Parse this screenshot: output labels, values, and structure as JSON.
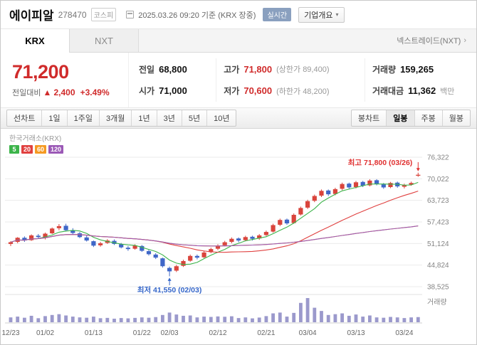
{
  "header": {
    "title": "에이피알",
    "code": "278470",
    "market_badge": "코스피",
    "datetime": "2025.03.26 09:20 기준 (KRX 장중)",
    "realtime_label": "실시간",
    "overview_label": "기업개요"
  },
  "icons": {
    "chevron_down": "▾",
    "chevron_right": "›"
  },
  "tabs": {
    "krx": "KRX",
    "nxt": "NXT",
    "link_label": "넥스트레이드(NXT)"
  },
  "price": {
    "current": "71,200",
    "change_label": "전일대비",
    "change_arrow": "▲",
    "change_value": "2,400",
    "change_percent": "+3.49%",
    "prev_label": "전일",
    "prev_value": "68,800",
    "open_label": "시가",
    "open_value": "71,000",
    "high_label": "고가",
    "high_value": "71,800",
    "upper_limit": "(상한가 89,400)",
    "low_label": "저가",
    "low_value": "70,600",
    "lower_limit": "(하한가 48,200)",
    "volume_label": "거래량",
    "volume_value": "159,265",
    "amount_label": "거래대금",
    "amount_value": "11,362",
    "amount_unit": "백만"
  },
  "toolbar": {
    "left": [
      "선차트",
      "1일",
      "1주일",
      "3개월",
      "1년",
      "3년",
      "5년",
      "10년"
    ],
    "right": [
      "봉차트",
      "일봉",
      "주봉",
      "월봉"
    ],
    "active": "일봉"
  },
  "colors": {
    "up": "#d9443c",
    "down": "#3f67c8",
    "price_up": "#d02b2b",
    "volume": "#9b99cc",
    "annotation_high": "#e03131",
    "annotation_low": "#3566c9"
  },
  "chart_data": {
    "type": "candlestick",
    "source_label": "한국거래소(KRX)",
    "ma_legend": [
      {
        "label": "5",
        "color": "#3cb44a"
      },
      {
        "label": "20",
        "color": "#e0403f"
      },
      {
        "label": "60",
        "color": "#f59a23"
      },
      {
        "label": "120",
        "color": "#9b59b6"
      }
    ],
    "y_ticks": [
      76322,
      70022,
      63723,
      57423,
      51124,
      44824,
      38525
    ],
    "y_min": 38525,
    "y_max": 76322,
    "x_labels": [
      {
        "idx": 0,
        "label": "12/23"
      },
      {
        "idx": 5,
        "label": "01/02"
      },
      {
        "idx": 12,
        "label": "01/13"
      },
      {
        "idx": 19,
        "label": "01/22"
      },
      {
        "idx": 23,
        "label": "02/03"
      },
      {
        "idx": 30,
        "label": "02/12"
      },
      {
        "idx": 37,
        "label": "02/21"
      },
      {
        "idx": 43,
        "label": "03/04"
      },
      {
        "idx": 50,
        "label": "03/13"
      },
      {
        "idx": 57,
        "label": "03/24"
      }
    ],
    "annotations": {
      "high": {
        "text": "최고 71,800 (03/26)",
        "idx": 59,
        "value": 71800
      },
      "low": {
        "text": "최저 41,550 (02/03)",
        "idx": 23,
        "value": 41550
      }
    },
    "volume_pane_label": "거래량",
    "candles": [
      [
        "12/23",
        51000,
        51800,
        50400,
        51500,
        30
      ],
      [
        "12/24",
        51600,
        53000,
        51200,
        52800,
        35
      ],
      [
        "12/26",
        52800,
        53200,
        51600,
        52000,
        28
      ],
      [
        "12/27",
        52100,
        53800,
        51900,
        53500,
        40
      ],
      [
        "12/30",
        53400,
        53900,
        52500,
        53000,
        25
      ],
      [
        "01/02",
        52800,
        54300,
        52300,
        54000,
        38
      ],
      [
        "01/03",
        54100,
        55800,
        53900,
        55500,
        45
      ],
      [
        "01/06",
        55600,
        56800,
        55000,
        56200,
        50
      ],
      [
        "01/07",
        56300,
        56900,
        54700,
        55000,
        42
      ],
      [
        "01/08",
        55000,
        55600,
        53900,
        54200,
        35
      ],
      [
        "01/09",
        54100,
        54500,
        52700,
        53000,
        30
      ],
      [
        "01/10",
        52900,
        53400,
        51700,
        52000,
        28
      ],
      [
        "01/13",
        51800,
        52000,
        50100,
        50500,
        35
      ],
      [
        "01/14",
        50600,
        51600,
        50200,
        51200,
        25
      ],
      [
        "01/15",
        51300,
        52400,
        51000,
        52000,
        27
      ],
      [
        "01/16",
        51900,
        52300,
        50700,
        51000,
        22
      ],
      [
        "01/17",
        50900,
        51300,
        49700,
        50000,
        26
      ],
      [
        "01/20",
        49900,
        50400,
        49000,
        49500,
        24
      ],
      [
        "01/21",
        49600,
        50900,
        49300,
        50500,
        27
      ],
      [
        "01/22",
        50400,
        50700,
        48700,
        49000,
        30
      ],
      [
        "01/23",
        48900,
        49300,
        47600,
        48000,
        28
      ],
      [
        "01/24",
        47900,
        48300,
        46600,
        47000,
        32
      ],
      [
        "01/31",
        46800,
        47000,
        44100,
        44500,
        45
      ],
      [
        "02/03",
        44000,
        44400,
        41550,
        43000,
        60
      ],
      [
        "02/04",
        43200,
        44900,
        42800,
        44500,
        48
      ],
      [
        "02/05",
        44600,
        46400,
        44300,
        46000,
        40
      ],
      [
        "02/06",
        46100,
        47900,
        45800,
        47500,
        42
      ],
      [
        "02/07",
        47500,
        47900,
        46500,
        47000,
        30
      ],
      [
        "02/10",
        47100,
        48900,
        46900,
        48500,
        35
      ],
      [
        "02/11",
        48600,
        49900,
        48300,
        49500,
        33
      ],
      [
        "02/12",
        49600,
        50900,
        49200,
        50500,
        36
      ],
      [
        "02/13",
        50600,
        51900,
        50300,
        51500,
        34
      ],
      [
        "02/14",
        51600,
        52900,
        51200,
        52500,
        37
      ],
      [
        "02/17",
        52600,
        52900,
        51500,
        52000,
        26
      ],
      [
        "02/18",
        52100,
        53400,
        51800,
        53000,
        30
      ],
      [
        "02/19",
        53100,
        53400,
        52000,
        52500,
        24
      ],
      [
        "02/20",
        52600,
        53900,
        52200,
        53500,
        29
      ],
      [
        "02/21",
        53600,
        54900,
        53300,
        54500,
        38
      ],
      [
        "02/24",
        54600,
        56900,
        54300,
        56500,
        55
      ],
      [
        "02/25",
        56600,
        58400,
        56200,
        58000,
        60
      ],
      [
        "02/26",
        58100,
        58400,
        56600,
        57000,
        35
      ],
      [
        "02/27",
        57100,
        59900,
        56900,
        59500,
        58
      ],
      [
        "02/28",
        59600,
        61900,
        59300,
        61500,
        120
      ],
      [
        "03/04",
        61600,
        63900,
        61200,
        63500,
        150
      ],
      [
        "03/05",
        63600,
        65400,
        63200,
        65000,
        90
      ],
      [
        "03/06",
        65100,
        66900,
        64700,
        66500,
        70
      ],
      [
        "03/07",
        66600,
        66900,
        65000,
        65500,
        45
      ],
      [
        "03/10",
        65600,
        67400,
        65200,
        67000,
        50
      ],
      [
        "03/11",
        67100,
        68900,
        66700,
        68500,
        55
      ],
      [
        "03/12",
        68600,
        68900,
        67100,
        67500,
        40
      ],
      [
        "03/13",
        67600,
        69400,
        67200,
        69000,
        48
      ],
      [
        "03/14",
        69100,
        69400,
        67600,
        68000,
        35
      ],
      [
        "03/17",
        68100,
        69900,
        67800,
        69500,
        42
      ],
      [
        "03/18",
        69600,
        69900,
        68100,
        68500,
        30
      ],
      [
        "03/19",
        68400,
        68800,
        67100,
        67500,
        28
      ],
      [
        "03/20",
        67600,
        69100,
        67300,
        68800,
        33
      ],
      [
        "03/21",
        68900,
        69200,
        67400,
        67800,
        30
      ],
      [
        "03/24",
        67700,
        68600,
        67200,
        68200,
        26
      ],
      [
        "03/25",
        68300,
        69200,
        68000,
        68800,
        30
      ],
      [
        "03/26",
        71000,
        71800,
        70600,
        71200,
        32
      ]
    ]
  }
}
